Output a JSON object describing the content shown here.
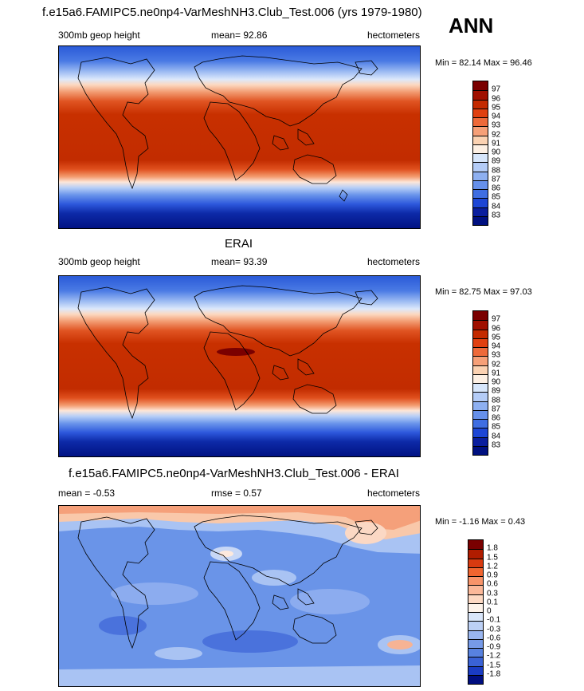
{
  "season": "ANN",
  "panels": [
    {
      "title": "f.e15a6.FAMIPC5.ne0np4-VarMeshNH3.Club_Test.006 (yrs 1979-1980)",
      "left_label": "300mb geop height",
      "center_label": "mean=  92.86",
      "right_label": "hectometers",
      "minmax": "Min =  82.14 Max =  96.46",
      "colorbar_labels": [
        "97",
        "96",
        "95",
        "94",
        "93",
        "92",
        "91",
        "90",
        "89",
        "88",
        "87",
        "86",
        "85",
        "84",
        "83"
      ]
    },
    {
      "title": "ERAI",
      "left_label": "300mb geop height",
      "center_label": "mean=  93.39",
      "right_label": "hectometers",
      "minmax": "Min =  82.75 Max =  97.03",
      "colorbar_labels": [
        "97",
        "96",
        "95",
        "94",
        "93",
        "92",
        "91",
        "90",
        "89",
        "88",
        "87",
        "86",
        "85",
        "84",
        "83"
      ]
    },
    {
      "title": "f.e15a6.FAMIPC5.ne0np4-VarMeshNH3.Club_Test.006 - ERAI",
      "left_label": "mean =  -0.53",
      "center_label": "rmse =   0.57",
      "right_label": "hectometers",
      "minmax": "Min =  -1.16 Max =   0.43",
      "colorbar_labels": [
        "1.8",
        "1.5",
        "1.2",
        "0.9",
        "0.6",
        "0.3",
        "0.1",
        "0",
        "-0.1",
        "-0.3",
        "-0.6",
        "-0.9",
        "-1.2",
        "-1.5",
        "-1.8"
      ]
    }
  ],
  "colors": {
    "abs_scale": [
      "#7a0000",
      "#a01000",
      "#c42a00",
      "#e04010",
      "#ee6a3a",
      "#f6a078",
      "#fbd2b2",
      "#fdf0e4",
      "#d7e6fb",
      "#b4ccf7",
      "#8eb0f1",
      "#6690ea",
      "#3f6ee2",
      "#1d46d5",
      "#0a1e9e",
      "#001080"
    ],
    "diff_scale": [
      "#7a0000",
      "#b01c00",
      "#d83a10",
      "#f06530",
      "#f8946a",
      "#fbb899",
      "#fdd9c3",
      "#fdf3ea",
      "#d9e6fa",
      "#bcd0f5",
      "#9ab6ef",
      "#769ae8",
      "#5882e0",
      "#3a62d6",
      "#1a3cc4",
      "#000e80"
    ]
  }
}
